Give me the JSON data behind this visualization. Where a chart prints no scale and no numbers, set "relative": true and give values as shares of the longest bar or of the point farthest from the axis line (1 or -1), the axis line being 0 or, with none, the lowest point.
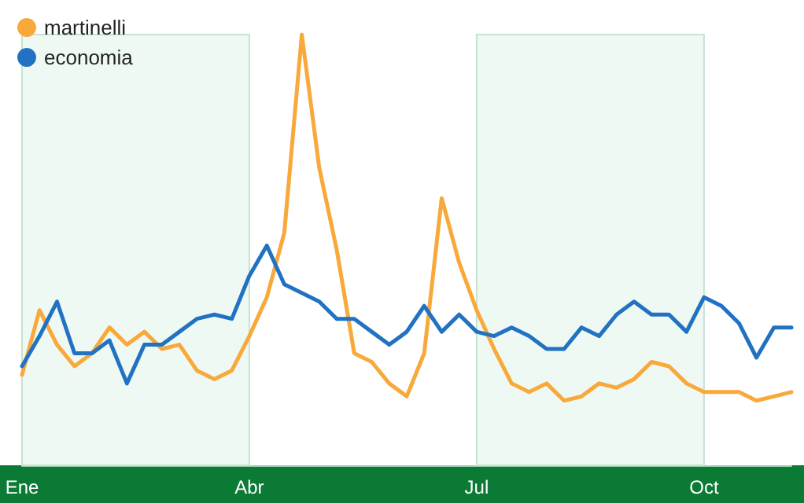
{
  "chart_data": {
    "type": "line",
    "relative": true,
    "categories": [
      "Ene",
      null,
      null,
      null,
      null,
      null,
      null,
      null,
      null,
      null,
      null,
      null,
      null,
      "Abr",
      null,
      null,
      null,
      null,
      null,
      null,
      null,
      null,
      null,
      null,
      null,
      null,
      "Jul",
      null,
      null,
      null,
      null,
      null,
      null,
      null,
      null,
      null,
      null,
      null,
      null,
      "Oct",
      null,
      null,
      null,
      null,
      null
    ],
    "series": [
      {
        "name": "martinelli",
        "color": "#f9a93a",
        "values": [
          0.21,
          0.36,
          0.28,
          0.23,
          0.26,
          0.32,
          0.28,
          0.31,
          0.27,
          0.28,
          0.22,
          0.2,
          0.22,
          0.3,
          0.39,
          0.54,
          1,
          0.69,
          0.5,
          0.26,
          0.24,
          0.19,
          0.16,
          0.26,
          0.62,
          0.47,
          0.36,
          0.27,
          0.19,
          0.17,
          0.19,
          0.15,
          0.16,
          0.19,
          0.18,
          0.2,
          0.24,
          0.23,
          0.19,
          0.17,
          0.17,
          0.17,
          0.15,
          0.16,
          0.17
        ]
      },
      {
        "name": "economia",
        "color": "#2172c2",
        "values": [
          0.23,
          0.3,
          0.38,
          0.26,
          0.26,
          0.29,
          0.19,
          0.28,
          0.28,
          0.31,
          0.34,
          0.35,
          0.34,
          0.44,
          0.51,
          0.42,
          0.4,
          0.38,
          0.34,
          0.34,
          0.31,
          0.28,
          0.31,
          0.37,
          0.31,
          0.35,
          0.31,
          0.3,
          0.32,
          0.3,
          0.27,
          0.27,
          0.32,
          0.3,
          0.35,
          0.38,
          0.35,
          0.35,
          0.31,
          0.39,
          0.37,
          0.33,
          0.25,
          0.32,
          0.32
        ]
      }
    ],
    "bands": [
      {
        "axis": "x",
        "from": "Ene",
        "to": "Abr",
        "color": "#eff9f3"
      },
      {
        "axis": "x",
        "from": "Jul",
        "to": "Oct",
        "color": "#eff9f3"
      }
    ],
    "legend": "top left",
    "grid": false,
    "marker": "none",
    "line_style": "solid"
  }
}
